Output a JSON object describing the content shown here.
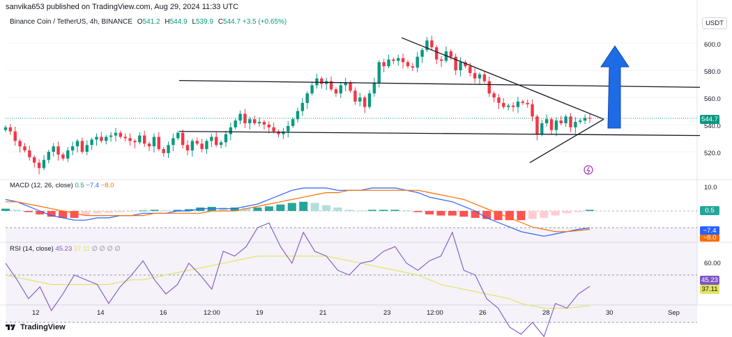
{
  "header": {
    "text": "sanvika653 published on TradingView.com, Aug 29, 2024 11:33 UTC"
  },
  "legend": {
    "symbol": "Binance Coin / TetherUS, 4h, BINANCE",
    "o_label": "O",
    "o_value": "541.2",
    "h_label": "H",
    "h_value": "544.9",
    "l_label": "L",
    "l_value": "539.9",
    "c_label": "C",
    "c_value": "544.7",
    "change": "+3.5 (+0.65%)"
  },
  "currency_button": "USDT",
  "macd_legend": {
    "name": "MACD (12, 26, close)",
    "hist": "0.5",
    "macd": "−7.4",
    "signal": "−8.0"
  },
  "rsi_legend": {
    "name": "RSI (14, close)",
    "rsi": "45.23",
    "ma": "37.11",
    "extra": "∅ ∅ ∅ ∅"
  },
  "price_axis": [
    "600.0",
    "580.0",
    "560.0",
    "540.0",
    "520.0"
  ],
  "macd_axis": [
    "10.0"
  ],
  "rsi_axis": [
    "60.00"
  ],
  "time_axis": [
    "12",
    "14",
    "16",
    "12:00",
    "19",
    "21",
    "23",
    "12:00",
    "26",
    "28",
    "30",
    "Sep"
  ],
  "badges": {
    "price": "544.7",
    "macd_hist": "0.5",
    "macd": "−7.4",
    "signal": "−8.0",
    "rsi": "45.23",
    "rsi_ma": "37.11"
  },
  "footer": {
    "brand": "TradingView"
  },
  "colors": {
    "up": "#089981",
    "down": "#f23645",
    "arrow": "#1e6be6",
    "macd": "#2962ff",
    "signal": "#ff6d00",
    "rsi": "#7e57c2",
    "rsi_ma": "#e0e35f"
  },
  "chart_data": [
    {
      "type": "candlestick",
      "title": "Binance Coin / TetherUS, 4h, BINANCE",
      "ylim": [
        505,
        615
      ],
      "y_ticks": [
        520,
        540,
        560,
        580,
        600
      ],
      "series": [
        {
          "name": "BNBUSDT",
          "close": [
            538,
            535,
            528,
            524,
            521,
            516,
            512,
            508,
            514,
            520,
            524,
            518,
            515,
            521,
            524,
            528,
            520,
            525,
            529,
            531,
            528,
            531,
            532,
            534,
            531,
            530,
            528,
            527,
            532,
            526,
            524,
            531,
            522,
            519,
            525,
            530,
            534,
            525,
            521,
            528,
            526,
            522,
            528,
            531,
            525,
            527,
            533,
            538,
            543,
            548,
            541,
            544,
            541,
            542,
            540,
            538,
            535,
            533,
            535,
            539,
            544,
            550,
            556,
            563,
            569,
            574,
            570,
            572,
            566,
            563,
            569,
            571,
            565,
            557,
            560,
            553,
            563,
            571,
            586,
            583,
            588,
            587,
            589,
            586,
            583,
            582,
            590,
            595,
            602,
            597,
            588,
            587,
            594,
            590,
            580,
            586,
            583,
            578,
            574,
            577,
            572,
            563,
            560,
            556,
            553,
            554,
            553,
            557,
            556,
            555,
            546,
            533,
            541,
            544,
            536,
            543,
            541,
            546,
            538,
            542,
            543,
            545,
            544.7
          ]
        }
      ],
      "annotations": [
        "horizontal resistance line",
        "horizontal support line",
        "descending trendline",
        "ascending trendline",
        "blue up arrow"
      ]
    },
    {
      "type": "line",
      "title": "MACD (12, 26, close)",
      "ylim": [
        -12,
        12
      ],
      "y_ticks": [
        10
      ],
      "series": [
        {
          "name": "MACD",
          "values": [
            5,
            4,
            2,
            0,
            -2,
            -3,
            -4,
            -4,
            -3,
            -3,
            -2,
            -2,
            -1,
            -1,
            -1,
            0,
            0,
            1,
            1,
            1,
            1,
            2,
            3,
            5,
            7,
            9,
            10,
            10,
            10,
            9,
            9,
            9,
            10,
            10,
            10,
            9,
            8,
            6,
            5,
            4,
            2,
            0,
            -3,
            -5,
            -7,
            -9,
            -10,
            -11,
            -10,
            -9,
            -8,
            -7.4
          ]
        },
        {
          "name": "Signal",
          "values": [
            4,
            4,
            3,
            2,
            1,
            0,
            -1,
            -2,
            -2,
            -2,
            -2,
            -2,
            -2,
            -1,
            -1,
            -1,
            -1,
            -1,
            0,
            0,
            0,
            1,
            2,
            3,
            4,
            5,
            6,
            7,
            8,
            8,
            9,
            9,
            9,
            9,
            9,
            9,
            9,
            8,
            7,
            6,
            5,
            3,
            1,
            -1,
            -3,
            -5,
            -7,
            -8,
            -9,
            -9,
            -8.5,
            -8.0
          ]
        },
        {
          "name": "Histogram",
          "values": [
            1,
            0.5,
            -0.5,
            -1.5,
            -2.5,
            -3,
            -3,
            -2,
            -1,
            -0.8,
            -0.5,
            -0.3,
            0.2,
            0.5,
            0.3,
            0.5,
            0.8,
            1.5,
            1.8,
            1.5,
            1.5,
            1.3,
            1.5,
            2,
            2.8,
            3.5,
            4,
            3.5,
            2.5,
            1.5,
            0.5,
            0.2,
            0.5,
            0.5,
            0.5,
            0.3,
            -0.5,
            -1.5,
            -2,
            -2,
            -2.5,
            -3,
            -3.5,
            -4,
            -4,
            -4,
            -3.5,
            -3,
            -2,
            -1,
            -0.5,
            0.5
          ]
        }
      ]
    },
    {
      "type": "line",
      "title": "RSI (14, close)",
      "ylim": [
        20,
        80
      ],
      "y_ticks": [
        60
      ],
      "series": [
        {
          "name": "RSI",
          "values": [
            55,
            48,
            40,
            45,
            35,
            42,
            50,
            48,
            46,
            38,
            45,
            50,
            56,
            48,
            42,
            46,
            55,
            50,
            44,
            60,
            58,
            62,
            70,
            72,
            62,
            55,
            68,
            60,
            58,
            52,
            50,
            55,
            56,
            60,
            62,
            55,
            52,
            56,
            58,
            68,
            52,
            50,
            40,
            36,
            28,
            25,
            30,
            24,
            38,
            36,
            42,
            45.23
          ]
        },
        {
          "name": "RSI MA",
          "values": [
            50,
            49,
            48,
            47,
            46,
            46,
            46,
            46,
            46,
            46,
            47,
            48,
            48,
            49,
            50,
            51,
            52,
            53,
            54,
            55,
            56,
            57,
            58,
            58,
            58,
            58,
            58,
            58,
            58,
            57,
            56,
            55,
            54,
            53,
            52,
            51,
            50,
            48,
            46,
            45,
            44,
            43,
            42,
            41,
            40,
            38,
            37,
            36,
            36,
            36,
            36.5,
            37.11
          ]
        }
      ]
    }
  ]
}
